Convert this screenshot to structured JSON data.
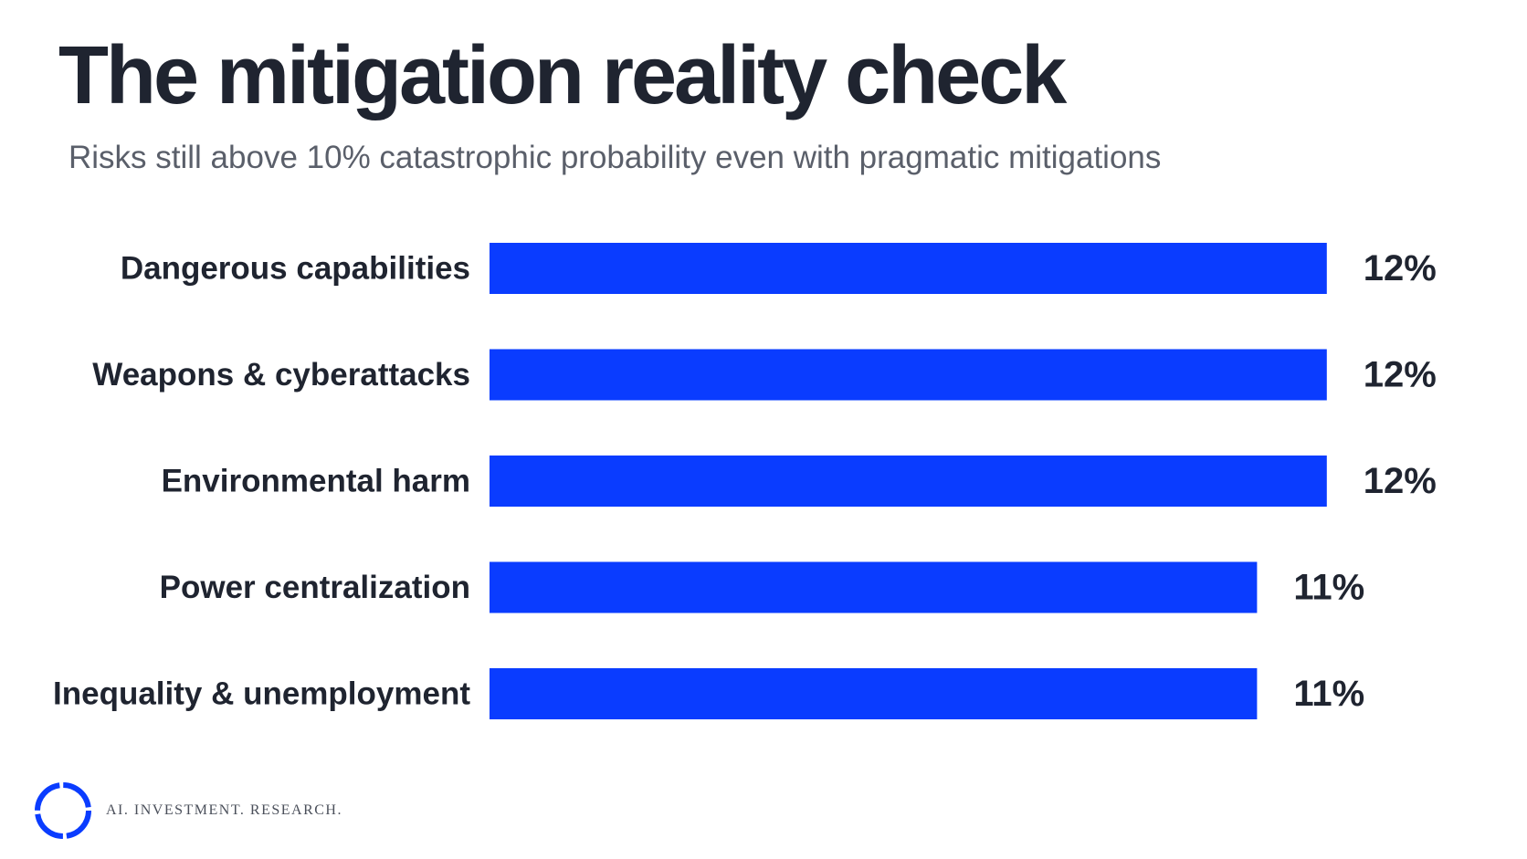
{
  "header": {
    "title": "The mitigation reality check",
    "subtitle": "Risks still above 10% catastrophic probability even with pragmatic mitigations"
  },
  "colors": {
    "bar": "#0a3cff",
    "text": "#1f2430",
    "subtitle": "#5a5f6a",
    "logo": "#0a3cff"
  },
  "chart_data": {
    "type": "bar",
    "orientation": "horizontal",
    "categories": [
      "Dangerous capabilities",
      "Weapons & cyberattacks",
      "Environmental harm",
      "Power centralization",
      "Inequality & unemployment"
    ],
    "values": [
      12,
      12,
      12,
      11,
      11
    ],
    "value_labels": [
      "12%",
      "12%",
      "12%",
      "11%",
      "11%"
    ],
    "title": "The mitigation reality check",
    "subtitle": "Risks still above 10% catastrophic probability even with pragmatic mitigations",
    "xlabel": "",
    "ylabel": "",
    "grid": false,
    "legend": "none"
  },
  "footer": {
    "logo_icon": "ring-logo-icon",
    "tagline": "AI. INVESTMENT. RESEARCH."
  }
}
